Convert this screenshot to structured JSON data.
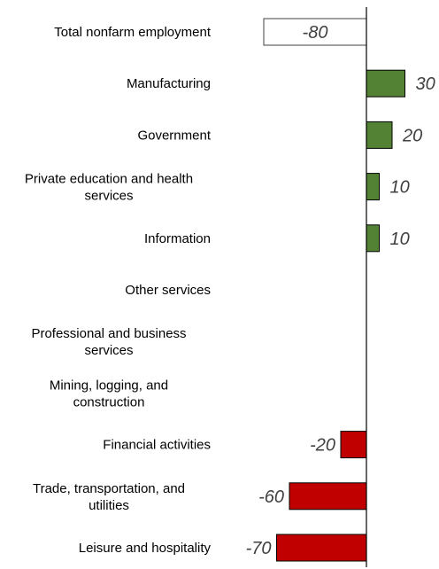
{
  "chart_data": {
    "type": "bar",
    "orientation": "horizontal",
    "categories": [
      "Total nonfarm employment",
      "Manufacturing",
      "Government",
      "Private education and health services",
      "Information",
      "Other services",
      "Professional and business services",
      "Mining, logging, and construction",
      "Financial activities",
      "Trade, transportation, and utilities",
      "Leisure and hospitality"
    ],
    "values": [
      -80,
      30,
      20,
      10,
      10,
      0,
      0,
      0,
      -20,
      -60,
      -70
    ],
    "data_labels": [
      "-80",
      "30",
      "20",
      "10",
      "10",
      "",
      "",
      "",
      "-20",
      "-60",
      "-70"
    ],
    "xlim": [
      -110,
      45
    ],
    "grid": false,
    "legend": "none"
  },
  "colors": {
    "total": "#ffffff",
    "positive": "#548235",
    "negative": "#c00000",
    "axis": "#000000"
  }
}
